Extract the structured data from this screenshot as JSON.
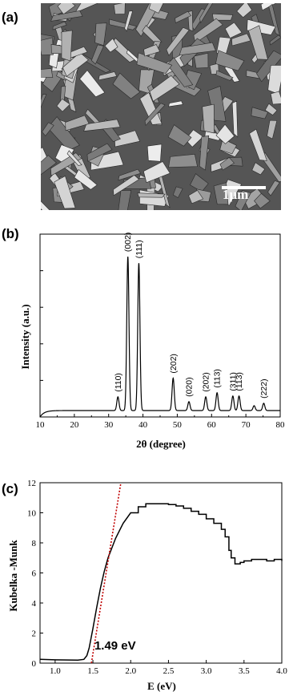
{
  "panels": {
    "a": {
      "label": "(a)",
      "scale_bar": "1μm"
    },
    "b": {
      "label": "(b)"
    },
    "c": {
      "label": "(c)"
    }
  },
  "chart_data": [
    {
      "type": "line",
      "panel": "b",
      "xlabel": "2θ (degree)",
      "ylabel": "Intensity (a.u.)",
      "xlim": [
        10,
        80
      ],
      "xticks": [
        10,
        20,
        30,
        40,
        50,
        60,
        70,
        80
      ],
      "grid": false,
      "peaks": [
        {
          "x": 32.7,
          "y": 0.085,
          "label": "(110)"
        },
        {
          "x": 35.6,
          "y": 0.95,
          "label": "(002)"
        },
        {
          "x": 38.8,
          "y": 0.91,
          "label": "(111)"
        },
        {
          "x": 48.8,
          "y": 0.2,
          "label": "(202)"
        },
        {
          "x": 53.4,
          "y": 0.055,
          "label": "(020)"
        },
        {
          "x": 58.3,
          "y": 0.085,
          "label": "(202)"
        },
        {
          "x": 61.6,
          "y": 0.11,
          "label": "(113)"
        },
        {
          "x": 66.2,
          "y": 0.09,
          "label": "(311)"
        },
        {
          "x": 68.0,
          "y": 0.09,
          "label": "(113)"
        },
        {
          "x": 72.4,
          "y": 0.03,
          "label": ""
        },
        {
          "x": 75.2,
          "y": 0.045,
          "label": "(222)"
        }
      ]
    },
    {
      "type": "line",
      "panel": "c",
      "xlabel": "E (eV)",
      "ylabel": "Kubelka -Munk",
      "xlim": [
        0.8,
        4.0
      ],
      "ylim": [
        0,
        12
      ],
      "xticks": [
        "1.0",
        "1.5",
        "2.0",
        "2.5",
        "3.0",
        "3.5",
        "4.0"
      ],
      "yticks": [
        0,
        2,
        4,
        6,
        8,
        10,
        12
      ],
      "grid": false,
      "series": [
        {
          "x": [
            0.8,
            1.0,
            1.3,
            1.38,
            1.42,
            1.45,
            1.5,
            1.55,
            1.6,
            1.65,
            1.7,
            1.8,
            1.9,
            2.0,
            2.1,
            2.2,
            2.3,
            2.5,
            2.6,
            2.7,
            2.8,
            2.9,
            3.0,
            3.1,
            3.2,
            3.25,
            3.3,
            3.33,
            3.38,
            3.45,
            3.5,
            3.6,
            3.7,
            3.8,
            3.9,
            4.0
          ],
          "y": [
            0.25,
            0.22,
            0.2,
            0.25,
            0.5,
            1.0,
            2.3,
            3.7,
            5.0,
            6.1,
            7.0,
            8.3,
            9.3,
            10.0,
            10.4,
            10.6,
            10.6,
            10.55,
            10.45,
            10.3,
            10.1,
            9.9,
            9.6,
            9.3,
            8.9,
            8.4,
            7.5,
            7.0,
            6.6,
            6.7,
            6.8,
            6.9,
            6.9,
            6.8,
            6.9,
            6.8
          ]
        }
      ],
      "tangent": {
        "x": [
          1.48,
          1.87
        ],
        "y": [
          0,
          12
        ]
      },
      "annotation": "1.49 eV"
    }
  ]
}
